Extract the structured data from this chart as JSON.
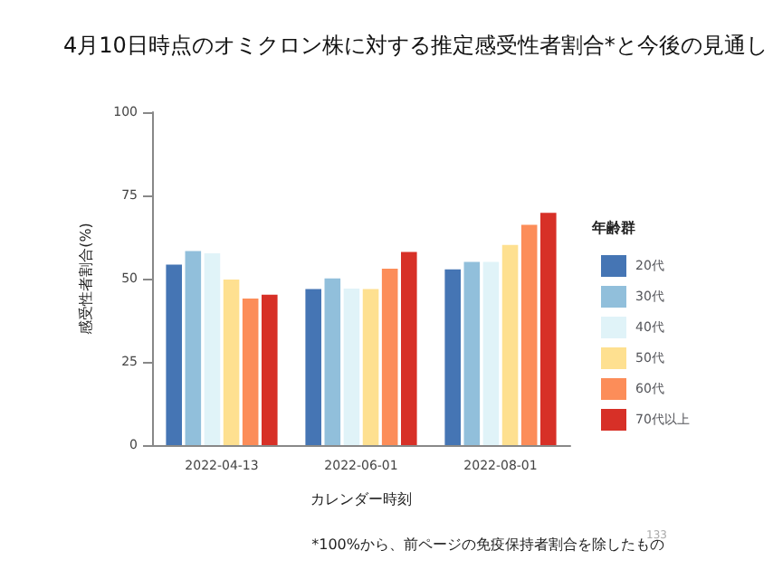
{
  "chart_data": {
    "type": "bar",
    "title": "4月10日時点のオミクロン株に対する推定感受性者割合*と今後の見通し",
    "xlabel": "カレンダー時刻",
    "ylabel": "感受性者割合(%)",
    "legend_title": "年齢群",
    "categories": [
      "2022-04-13",
      "2022-06-01",
      "2022-08-01"
    ],
    "series": [
      {
        "name": "20代",
        "color": "#4575b4",
        "values": [
          54.2,
          46.9,
          52.8
        ]
      },
      {
        "name": "30代",
        "color": "#91bfdb",
        "values": [
          58.3,
          50.1,
          55
        ]
      },
      {
        "name": "40代",
        "color": "#e0f3f8",
        "values": [
          57.6,
          47,
          55
        ]
      },
      {
        "name": "50代",
        "color": "#fee090",
        "values": [
          49.7,
          46.9,
          60.1
        ]
      },
      {
        "name": "60代",
        "color": "#fc8d59",
        "values": [
          44,
          53,
          66.2
        ]
      },
      {
        "name": "70代以上",
        "color": "#d73027",
        "values": [
          45.2,
          58,
          69.8
        ]
      }
    ],
    "ylim": [
      0,
      100
    ],
    "yticks": [
      0,
      25,
      50,
      75,
      100
    ],
    "grid": false,
    "legend": "right",
    "annotations": [
      "*100%から、前ページの免疫保持者割合を除したもの",
      "133"
    ]
  }
}
